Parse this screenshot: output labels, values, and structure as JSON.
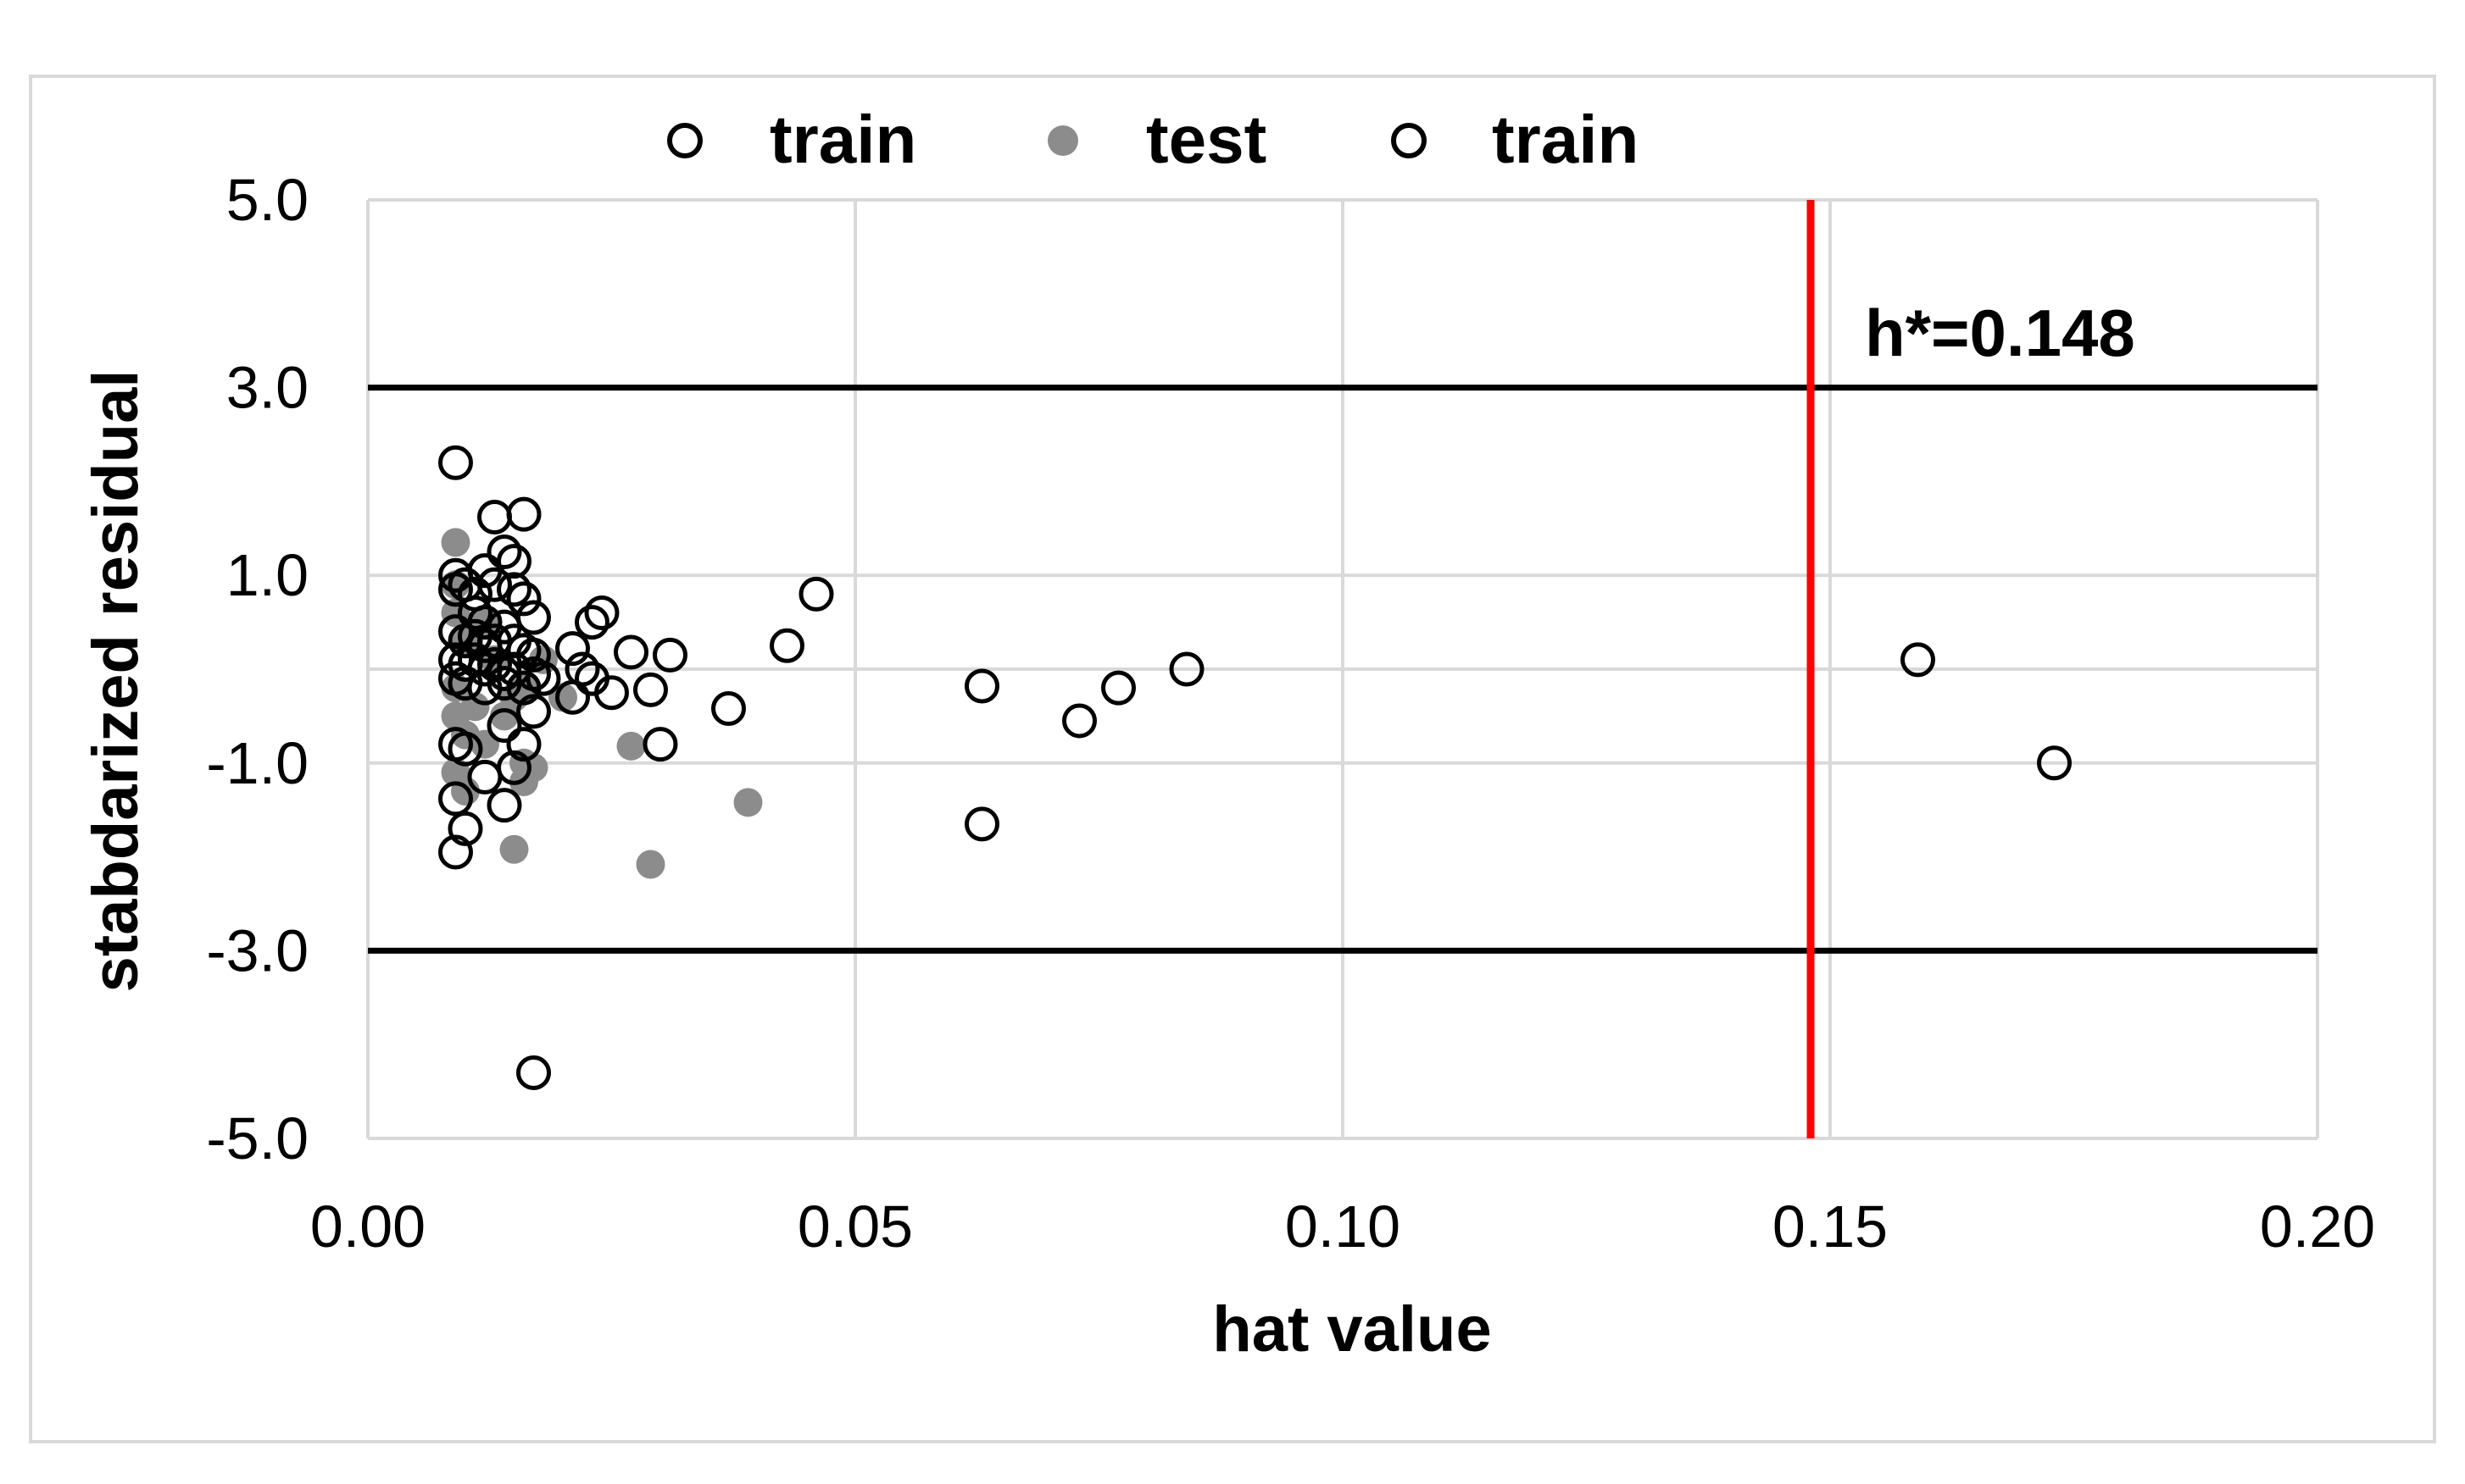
{
  "chart_data": {
    "type": "scatter",
    "xlabel": "hat value",
    "ylabel": "stabdarized residual",
    "xlim": [
      0.0,
      0.2
    ],
    "ylim": [
      -5.0,
      5.0
    ],
    "x_ticks": [
      "0.00",
      "0.05",
      "0.10",
      "0.15",
      "0.20"
    ],
    "y_ticks": [
      "5.0",
      "3.0",
      "1.0",
      "-1.0",
      "-3.0",
      "-5.0"
    ],
    "grid": true,
    "legend_position": "top",
    "legend": [
      {
        "label": "train",
        "marker": "open-circle"
      },
      {
        "label": "test",
        "marker": "filled-circle"
      },
      {
        "label": "train",
        "marker": "open-circle"
      }
    ],
    "reference_lines": {
      "horizontal": [
        3.0,
        -3.0
      ],
      "vertical": 0.148,
      "vertical_color": "#ff0000",
      "annotation": "h*=0.148"
    },
    "series": [
      {
        "name": "test",
        "marker": "filled",
        "color": "#8c8c8c",
        "points": [
          [
            0.009,
            1.35
          ],
          [
            0.009,
            0.9
          ],
          [
            0.009,
            0.6
          ],
          [
            0.01,
            0.3
          ],
          [
            0.009,
            -0.2
          ],
          [
            0.009,
            -0.5
          ],
          [
            0.01,
            -0.7
          ],
          [
            0.009,
            -1.1
          ],
          [
            0.01,
            -1.3
          ],
          [
            0.011,
            -0.4
          ],
          [
            0.012,
            0.5
          ],
          [
            0.012,
            -0.8
          ],
          [
            0.013,
            0.1
          ],
          [
            0.014,
            -0.5
          ],
          [
            0.015,
            -0.3
          ],
          [
            0.016,
            -1.0
          ],
          [
            0.016,
            -1.2
          ],
          [
            0.017,
            -1.05
          ],
          [
            0.016,
            -0.2
          ],
          [
            0.015,
            -1.92
          ],
          [
            0.018,
            0.1
          ],
          [
            0.02,
            -0.3
          ],
          [
            0.027,
            -0.82
          ],
          [
            0.029,
            -2.08
          ],
          [
            0.039,
            -1.42
          ]
        ]
      },
      {
        "name": "train",
        "marker": "open",
        "color": "#000000",
        "points": [
          [
            0.009,
            2.2
          ],
          [
            0.013,
            1.62
          ],
          [
            0.016,
            1.65
          ],
          [
            0.014,
            1.25
          ],
          [
            0.015,
            1.15
          ],
          [
            0.012,
            1.05
          ],
          [
            0.009,
            1.0
          ],
          [
            0.009,
            0.85
          ],
          [
            0.01,
            0.9
          ],
          [
            0.011,
            0.8
          ],
          [
            0.013,
            0.9
          ],
          [
            0.015,
            0.85
          ],
          [
            0.016,
            0.75
          ],
          [
            0.017,
            0.55
          ],
          [
            0.011,
            0.6
          ],
          [
            0.012,
            0.5
          ],
          [
            0.014,
            0.45
          ],
          [
            0.009,
            0.4
          ],
          [
            0.01,
            0.3
          ],
          [
            0.011,
            0.35
          ],
          [
            0.012,
            0.25
          ],
          [
            0.013,
            0.3
          ],
          [
            0.015,
            0.3
          ],
          [
            0.016,
            0.2
          ],
          [
            0.017,
            0.15
          ],
          [
            0.009,
            0.1
          ],
          [
            0.01,
            0.05
          ],
          [
            0.011,
            0.1
          ],
          [
            0.012,
            0.0
          ],
          [
            0.013,
            0.05
          ],
          [
            0.014,
            -0.05
          ],
          [
            0.015,
            0.0
          ],
          [
            0.017,
            -0.05
          ],
          [
            0.009,
            -0.1
          ],
          [
            0.01,
            -0.15
          ],
          [
            0.012,
            -0.2
          ],
          [
            0.014,
            -0.15
          ],
          [
            0.016,
            -0.2
          ],
          [
            0.018,
            -0.1
          ],
          [
            0.021,
            0.22
          ],
          [
            0.023,
            0.5
          ],
          [
            0.024,
            0.6
          ],
          [
            0.022,
            0.0
          ],
          [
            0.021,
            -0.3
          ],
          [
            0.023,
            -0.1
          ],
          [
            0.025,
            -0.25
          ],
          [
            0.027,
            0.18
          ],
          [
            0.029,
            -0.22
          ],
          [
            0.031,
            0.15
          ],
          [
            0.03,
            -0.8
          ],
          [
            0.037,
            -0.42
          ],
          [
            0.043,
            0.25
          ],
          [
            0.046,
            0.8
          ],
          [
            0.009,
            -0.8
          ],
          [
            0.01,
            -0.85
          ],
          [
            0.014,
            -0.6
          ],
          [
            0.016,
            -0.8
          ],
          [
            0.017,
            -0.45
          ],
          [
            0.012,
            -1.15
          ],
          [
            0.015,
            -1.05
          ],
          [
            0.009,
            -1.38
          ],
          [
            0.01,
            -1.7
          ],
          [
            0.014,
            -1.45
          ],
          [
            0.009,
            -1.95
          ],
          [
            0.017,
            -4.3
          ],
          [
            0.063,
            -0.18
          ],
          [
            0.063,
            -1.65
          ],
          [
            0.073,
            -0.55
          ],
          [
            0.077,
            -0.2
          ],
          [
            0.084,
            0.0
          ],
          [
            0.159,
            0.1
          ],
          [
            0.173,
            -1.0
          ]
        ]
      }
    ]
  },
  "colors": {
    "grid": "#d9d9d9",
    "threshold_line": "#000000",
    "leverage_line": "#ff0000",
    "test_marker": "#8c8c8c",
    "train_marker": "#000000"
  }
}
